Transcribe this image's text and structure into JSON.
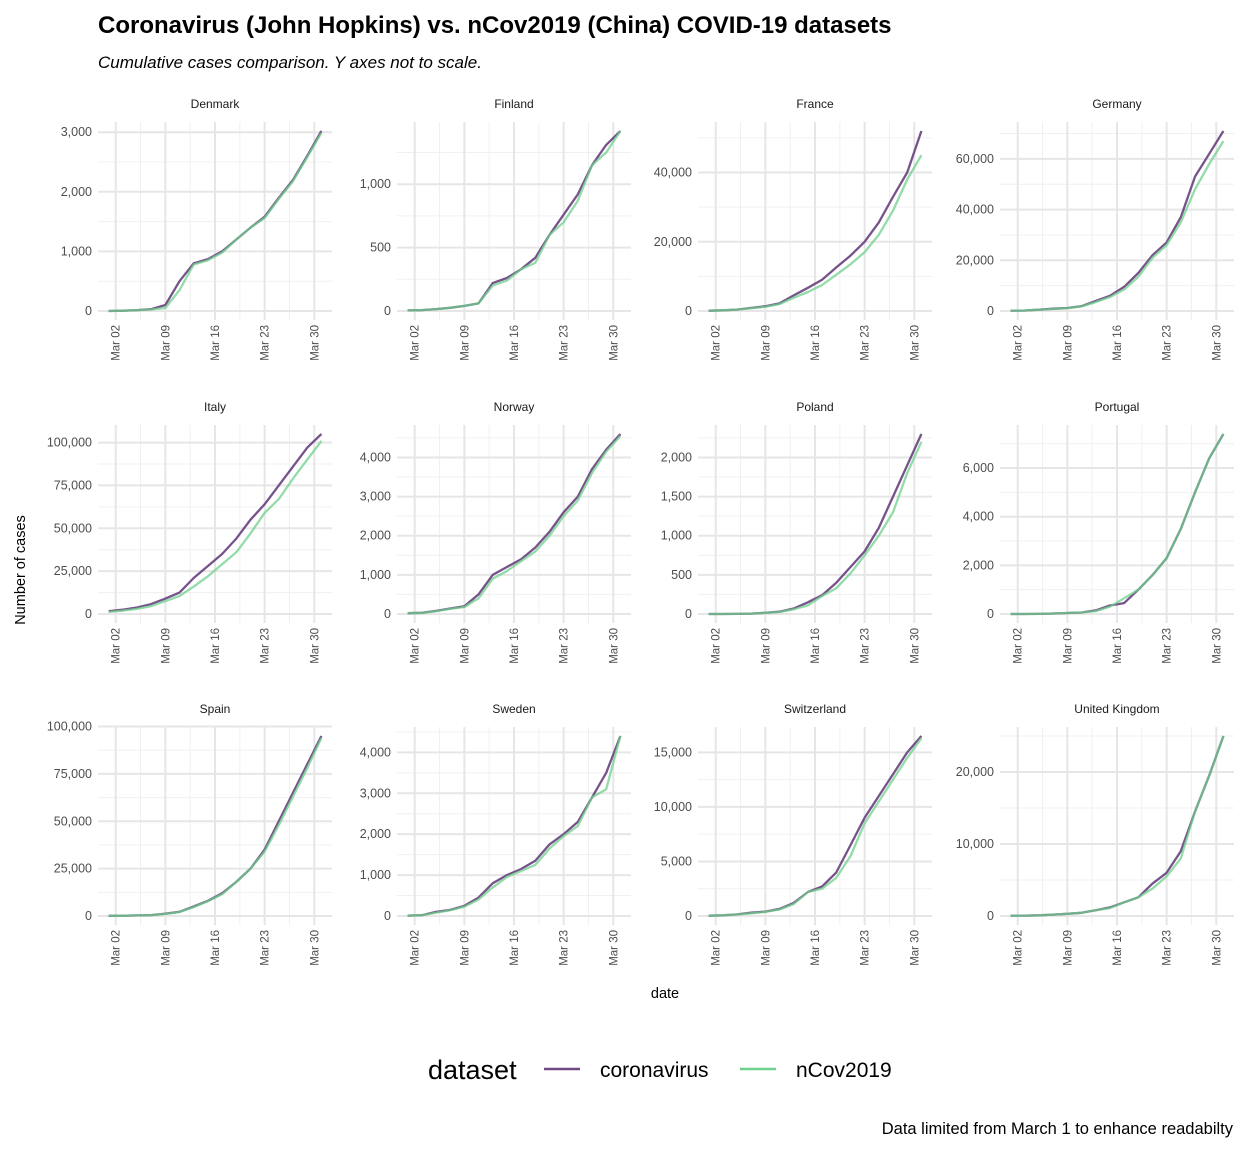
{
  "title": "Coronavirus (John Hopkins) vs. nCov2019 (China) COVID-19 datasets",
  "subtitle": "Cumulative cases comparison. Y axes not to scale.",
  "caption": "Data limited from March 1 to enhance readabilty",
  "colors": {
    "coronavirus": "#6f4a84",
    "nCov2019": "#6fd08c"
  },
  "chart_data": {
    "type": "line",
    "xlabel": "date",
    "ylabel": "Number of cases",
    "x_unit": "day of March 2020",
    "x": [
      1,
      3,
      5,
      7,
      9,
      11,
      13,
      15,
      17,
      19,
      21,
      23,
      25,
      27,
      29,
      31
    ],
    "xlim": [
      1,
      31
    ],
    "xticks": [
      {
        "day": 2,
        "label": "Mar 02"
      },
      {
        "day": 9,
        "label": "Mar 09"
      },
      {
        "day": 16,
        "label": "Mar 16"
      },
      {
        "day": 23,
        "label": "Mar 23"
      },
      {
        "day": 30,
        "label": "Mar 30"
      }
    ],
    "legend": {
      "title": "dataset",
      "position": "bottom",
      "entries": [
        "coronavirus",
        "nCov2019"
      ]
    },
    "grid": true,
    "panels": [
      {
        "name": "Denmark",
        "yticks": [
          {
            "v": 0,
            "label": "0"
          },
          {
            "v": 1000,
            "label": "1,000"
          },
          {
            "v": 2000,
            "label": "2,000"
          },
          {
            "v": 3000,
            "label": "3,000"
          }
        ],
        "series": [
          {
            "name": "coronavirus",
            "values": [
              0,
              5,
              15,
              30,
              100,
              500,
              800,
              870,
              1000,
              1200,
              1400,
              1580,
              1900,
              2200,
              2600,
              3020
            ]
          },
          {
            "name": "nCov2019",
            "values": [
              0,
              5,
              15,
              25,
              50,
              350,
              780,
              850,
              980,
              1200,
              1400,
              1560,
              1880,
              2180,
              2580,
              2990
            ]
          }
        ]
      },
      {
        "name": "Finland",
        "yticks": [
          {
            "v": 0,
            "label": "0"
          },
          {
            "v": 500,
            "label": "500"
          },
          {
            "v": 1000,
            "label": "1,000"
          }
        ],
        "series": [
          {
            "name": "coronavirus",
            "values": [
              5,
              7,
              15,
              25,
              40,
              60,
              220,
              260,
              330,
              420,
              600,
              760,
              920,
              1150,
              1310,
              1420
            ]
          },
          {
            "name": "nCov2019",
            "values": [
              5,
              7,
              15,
              25,
              40,
              60,
              200,
              240,
              330,
              380,
              600,
              700,
              870,
              1150,
              1250,
              1420
            ]
          }
        ]
      },
      {
        "name": "France",
        "yticks": [
          {
            "v": 0,
            "label": "0"
          },
          {
            "v": 20000,
            "label": "20,000"
          },
          {
            "v": 40000,
            "label": "40,000"
          }
        ],
        "series": [
          {
            "name": "coronavirus",
            "values": [
              100,
              200,
              400,
              900,
              1400,
              2200,
              4500,
              6700,
              9000,
              12600,
              16000,
              20000,
              25600,
              33000,
              40000,
              52000
            ]
          },
          {
            "name": "nCov2019",
            "values": [
              100,
              200,
              400,
              800,
              1200,
              2000,
              3800,
              5500,
              7500,
              10500,
              13500,
              17000,
              22000,
              29000,
              38000,
              45000
            ]
          }
        ]
      },
      {
        "name": "Germany",
        "yticks": [
          {
            "v": 0,
            "label": "0"
          },
          {
            "v": 20000,
            "label": "20,000"
          },
          {
            "v": 40000,
            "label": "40,000"
          },
          {
            "v": 60000,
            "label": "60,000"
          }
        ],
        "series": [
          {
            "name": "coronavirus",
            "values": [
              130,
              200,
              500,
              900,
              1200,
              1900,
              4000,
              6000,
              9500,
              15000,
              22000,
              27000,
              37000,
              53000,
              62000,
              71000
            ]
          },
          {
            "name": "nCov2019",
            "values": [
              130,
              200,
              500,
              800,
              1100,
              1800,
              3500,
              5500,
              8500,
              13500,
              21000,
              26000,
              35000,
              48000,
              58000,
              67000
            ]
          }
        ]
      },
      {
        "name": "Italy",
        "yticks": [
          {
            "v": 0,
            "label": "0"
          },
          {
            "v": 25000,
            "label": "25,000"
          },
          {
            "v": 50000,
            "label": "50,000"
          },
          {
            "v": 75000,
            "label": "75,000"
          },
          {
            "v": 100000,
            "label": "100,000"
          }
        ],
        "series": [
          {
            "name": "coronavirus",
            "values": [
              1700,
              2500,
              3800,
              5800,
              9000,
              12500,
              21000,
              28000,
              35000,
              44000,
              55000,
              64000,
              75000,
              86000,
              97000,
              105000
            ]
          },
          {
            "name": "nCov2019",
            "values": [
              1200,
              2000,
              3000,
              4600,
              7500,
              10500,
              16000,
              22000,
              29000,
              36000,
              47000,
              59000,
              67000,
              79000,
              90000,
              101000
            ]
          }
        ]
      },
      {
        "name": "Norway",
        "yticks": [
          {
            "v": 0,
            "label": "0"
          },
          {
            "v": 1000,
            "label": "1,000"
          },
          {
            "v": 2000,
            "label": "2,000"
          },
          {
            "v": 3000,
            "label": "3,000"
          },
          {
            "v": 4000,
            "label": "4,000"
          }
        ],
        "series": [
          {
            "name": "coronavirus",
            "values": [
              20,
              30,
              80,
              140,
              200,
              500,
              1000,
              1200,
              1400,
              1700,
              2100,
              2600,
              3000,
              3700,
              4200,
              4600
            ]
          },
          {
            "name": "nCov2019",
            "values": [
              20,
              30,
              70,
              130,
              180,
              400,
              900,
              1100,
              1350,
              1600,
              2000,
              2500,
              2900,
              3600,
              4150,
              4550
            ]
          }
        ]
      },
      {
        "name": "Poland",
        "yticks": [
          {
            "v": 0,
            "label": "0"
          },
          {
            "v": 500,
            "label": "500"
          },
          {
            "v": 1000,
            "label": "1,000"
          },
          {
            "v": 1500,
            "label": "1,500"
          },
          {
            "v": 2000,
            "label": "2,000"
          }
        ],
        "series": [
          {
            "name": "coronavirus",
            "values": [
              0,
              0,
              1,
              5,
              15,
              30,
              70,
              150,
              240,
              400,
              600,
              800,
              1100,
              1500,
              1900,
              2300
            ]
          },
          {
            "name": "nCov2019",
            "values": [
              0,
              0,
              1,
              5,
              15,
              25,
              60,
              110,
              230,
              330,
              520,
              750,
              1000,
              1300,
              1800,
              2200
            ]
          }
        ]
      },
      {
        "name": "Portugal",
        "yticks": [
          {
            "v": 0,
            "label": "0"
          },
          {
            "v": 2000,
            "label": "2,000"
          },
          {
            "v": 4000,
            "label": "4,000"
          },
          {
            "v": 6000,
            "label": "6,000"
          }
        ],
        "series": [
          {
            "name": "coronavirus",
            "values": [
              0,
              0,
              5,
              20,
              40,
              60,
              150,
              350,
              450,
              1000,
              1600,
              2300,
              3500,
              5000,
              6400,
              7400
            ]
          },
          {
            "name": "nCov2019",
            "values": [
              0,
              0,
              5,
              20,
              40,
              60,
              120,
              300,
              650,
              1000,
              1600,
              2300,
              3500,
              5000,
              6400,
              7400
            ]
          }
        ]
      },
      {
        "name": "Spain",
        "yticks": [
          {
            "v": 0,
            "label": "0"
          },
          {
            "v": 25000,
            "label": "25,000"
          },
          {
            "v": 50000,
            "label": "50,000"
          },
          {
            "v": 75000,
            "label": "75,000"
          },
          {
            "v": 100000,
            "label": "100,000"
          }
        ],
        "series": [
          {
            "name": "coronavirus",
            "values": [
              80,
              150,
              300,
              500,
              1200,
              2200,
              5000,
              8000,
              12000,
              18000,
              25000,
              35000,
              50000,
              65000,
              80000,
              95000
            ]
          },
          {
            "name": "nCov2019",
            "values": [
              80,
              150,
              300,
              500,
              1100,
              2100,
              4700,
              7800,
              11500,
              18000,
              25000,
              34000,
              48000,
              63000,
              78000,
              94000
            ]
          }
        ]
      },
      {
        "name": "Sweden",
        "yticks": [
          {
            "v": 0,
            "label": "0"
          },
          {
            "v": 1000,
            "label": "1,000"
          },
          {
            "v": 2000,
            "label": "2,000"
          },
          {
            "v": 3000,
            "label": "3,000"
          },
          {
            "v": 4000,
            "label": "4,000"
          }
        ],
        "series": [
          {
            "name": "coronavirus",
            "values": [
              10,
              20,
              100,
              150,
              250,
              450,
              800,
              1000,
              1150,
              1350,
              1750,
              2000,
              2300,
              2900,
              3500,
              4400
            ]
          },
          {
            "name": "nCov2019",
            "values": [
              10,
              20,
              80,
              140,
              230,
              400,
              700,
              950,
              1100,
              1250,
              1650,
              1950,
              2200,
              2900,
              3100,
              4400
            ]
          }
        ]
      },
      {
        "name": "Switzerland",
        "yticks": [
          {
            "v": 0,
            "label": "0"
          },
          {
            "v": 5000,
            "label": "5,000"
          },
          {
            "v": 10000,
            "label": "10,000"
          },
          {
            "v": 15000,
            "label": "15,000"
          }
        ],
        "series": [
          {
            "name": "coronavirus",
            "values": [
              30,
              60,
              150,
              300,
              400,
              650,
              1200,
              2200,
              2700,
              4000,
              6500,
              9000,
              11000,
              13000,
              15000,
              16500
            ]
          },
          {
            "name": "nCov2019",
            "values": [
              30,
              60,
              150,
              250,
              380,
              600,
              1100,
              2200,
              2500,
              3500,
              5500,
              8500,
              10500,
              12500,
              14500,
              16300
            ]
          }
        ]
      },
      {
        "name": "United Kingdom",
        "yticks": [
          {
            "v": 0,
            "label": "0"
          },
          {
            "v": 10000,
            "label": "10,000"
          },
          {
            "v": 20000,
            "label": "20,000"
          }
        ],
        "series": [
          {
            "name": "coronavirus",
            "values": [
              40,
              50,
              100,
              200,
              300,
              450,
              800,
              1200,
              1900,
              2600,
              4500,
              6000,
              9000,
              14500,
              19500,
              25000
            ]
          },
          {
            "name": "nCov2019",
            "values": [
              40,
              50,
              100,
              200,
              300,
              450,
              800,
              1100,
              1900,
              2600,
              3800,
              5500,
              8000,
              14500,
              19500,
              25000
            ]
          }
        ]
      }
    ]
  }
}
